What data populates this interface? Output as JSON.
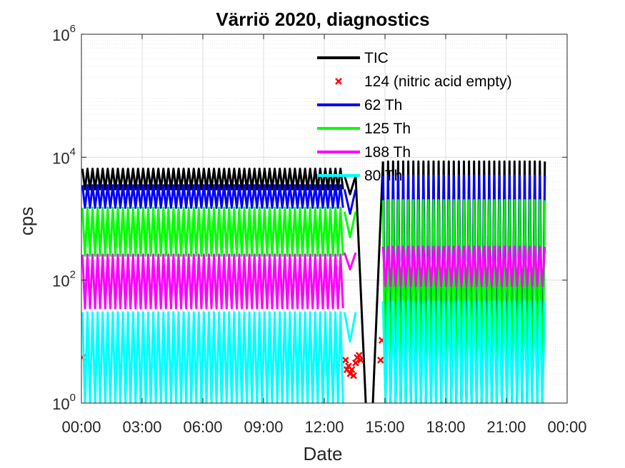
{
  "chart_data": {
    "type": "line",
    "title": "Värriö 2020, diagnostics",
    "xlabel": "Date",
    "ylabel": "cps",
    "x_unit": "hours",
    "xlim": [
      0,
      24
    ],
    "ylim": [
      1,
      1000000
    ],
    "y_scale": "log",
    "grid": true,
    "minor_grid": true,
    "legend_position": "top-right (inside axes)",
    "x_ticks": [
      0,
      3,
      6,
      9,
      12,
      15,
      18,
      21,
      24
    ],
    "x_tick_labels": [
      "00:00",
      "03:00",
      "06:00",
      "09:00",
      "12:00",
      "15:00",
      "18:00",
      "21:00",
      "00:00"
    ],
    "y_ticks": [
      1,
      100,
      10000,
      1000000
    ],
    "y_tick_labels": [
      {
        "base": "10",
        "exp": "0"
      },
      {
        "base": "10",
        "exp": "2"
      },
      {
        "base": "10",
        "exp": "4"
      },
      {
        "base": "10",
        "exp": "6"
      }
    ],
    "series": [
      {
        "name": "TIC",
        "style": "line",
        "color": "#000000",
        "description_of_pattern": "oscillating envelope",
        "segments": [
          {
            "x_start": 0.05,
            "x_end": 12.95,
            "period": 0.25,
            "low": 3000,
            "high": 6500
          },
          {
            "x_start": 13.0,
            "x_end": 13.55,
            "period": 0.55,
            "low": 2500,
            "high": 5000
          },
          {
            "x_start": 14.9,
            "x_end": 22.9,
            "period": 0.25,
            "low": 1,
            "high": 8500
          }
        ],
        "drops": [
          {
            "x": 13.55,
            "y_from": 5000,
            "x_to": 14.05,
            "y_to": 1
          },
          {
            "x": 14.4,
            "y_from": 1,
            "x_to": 14.9,
            "y_to": 8500
          }
        ]
      },
      {
        "name": "124 (nitric acid empty)",
        "style": "markers",
        "marker": "x",
        "color": "#ff0000",
        "x": [
          0.05,
          13.05,
          13.12,
          13.2,
          13.28,
          13.36,
          13.45,
          13.55,
          13.63,
          13.72,
          13.8,
          14.78,
          14.85
        ],
        "y": [
          5.5,
          5.0,
          3.5,
          4.0,
          3.0,
          3.5,
          2.8,
          4.5,
          5.5,
          6.0,
          5.0,
          5.0,
          10.5
        ]
      },
      {
        "name": "62 Th",
        "style": "line",
        "color": "#0000ff",
        "segments": [
          {
            "x_start": 0.05,
            "x_end": 12.95,
            "period": 0.25,
            "low": 1500,
            "high": 3500
          },
          {
            "x_start": 13.0,
            "x_end": 13.55,
            "period": 0.55,
            "low": 1200,
            "high": 3000
          },
          {
            "x_start": 14.9,
            "x_end": 22.9,
            "period": 0.25,
            "low": 1,
            "high": 5000
          }
        ]
      },
      {
        "name": "125 Th",
        "style": "line",
        "color": "#00ff00",
        "segments": [
          {
            "x_start": 0.05,
            "x_end": 12.95,
            "period": 0.25,
            "low": 250,
            "high": 1500
          },
          {
            "x_start": 13.0,
            "x_end": 13.55,
            "period": 0.55,
            "low": 500,
            "high": 1300
          },
          {
            "x_start": 14.9,
            "x_end": 22.9,
            "period": 0.25,
            "low": 1,
            "high": 2000
          }
        ]
      },
      {
        "name": "188 Th",
        "style": "line",
        "color": "#ff00ff",
        "segments": [
          {
            "x_start": 0.05,
            "x_end": 12.95,
            "period": 0.25,
            "low": 35,
            "high": 260
          },
          {
            "x_start": 13.0,
            "x_end": 13.55,
            "period": 0.55,
            "low": 150,
            "high": 280
          },
          {
            "x_start": 14.9,
            "x_end": 22.9,
            "period": 0.25,
            "low": 80,
            "high": 350
          }
        ]
      },
      {
        "name": "80 Th",
        "style": "line",
        "color": "#00ffff",
        "segments": [
          {
            "x_start": 0.05,
            "x_end": 12.95,
            "period": 0.25,
            "low": 1,
            "high": 30
          },
          {
            "x_start": 13.0,
            "x_end": 13.55,
            "period": 0.55,
            "low": 10,
            "high": 30
          },
          {
            "x_start": 14.9,
            "x_end": 22.9,
            "period": 0.25,
            "low": 1,
            "high": 45
          }
        ]
      }
    ]
  }
}
